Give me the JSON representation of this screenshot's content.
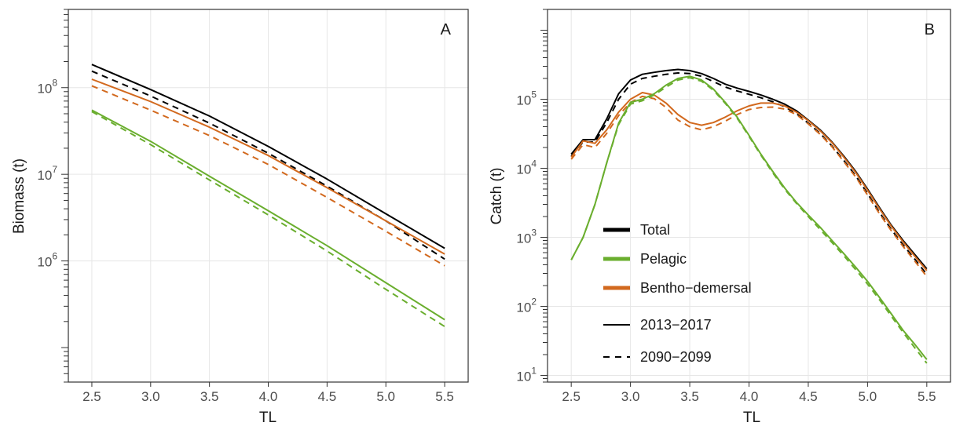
{
  "colors": {
    "total": "#000000",
    "pelagic": "#6aae2e",
    "bentho": "#d2691e",
    "grid": "#e6e6e6",
    "frame": "#333333"
  },
  "legend": {
    "groups": [
      {
        "label": "Total",
        "color": "#000000"
      },
      {
        "label": "Pelagic",
        "color": "#6aae2e"
      },
      {
        "label": "Bentho−demersal",
        "color": "#d2691e"
      }
    ],
    "periods": [
      {
        "label": "2013−2017",
        "dash": "solid"
      },
      {
        "label": "2090−2099",
        "dash": "dashed"
      }
    ]
  },
  "chart_data": [
    {
      "type": "line",
      "panel_label": "A",
      "xlabel": "TL",
      "ylabel": "Biomass (t)",
      "yscale": "log",
      "xlim": [
        2.3,
        5.7
      ],
      "ylim": [
        40000,
        800000000
      ],
      "xticks": [
        "2.5",
        "3.0",
        "3.5",
        "4.0",
        "4.5",
        "5.0",
        "5.5"
      ],
      "ytick_labels": [
        {
          "base": "10",
          "exp": "6",
          "value": 1000000
        },
        {
          "base": "10",
          "exp": "7",
          "value": 10000000
        },
        {
          "base": "10",
          "exp": "8",
          "value": 100000000
        }
      ],
      "grid": true,
      "x": [
        2.5,
        3.0,
        3.5,
        4.0,
        4.5,
        5.0,
        5.5
      ],
      "series": [
        {
          "group": "total",
          "period": "2013−2017",
          "color": "#000000",
          "dash": "solid",
          "values": [
            185000000,
            95000000,
            47000000,
            21000000,
            8800000,
            3500000,
            1400000
          ]
        },
        {
          "group": "total",
          "period": "2090−2099",
          "color": "#000000",
          "dash": "dashed",
          "values": [
            155000000,
            80000000,
            39000000,
            17500000,
            7300000,
            2900000,
            1050000
          ]
        },
        {
          "group": "bentho",
          "period": "2013−2017",
          "color": "#d2691e",
          "dash": "solid",
          "values": [
            125000000,
            69000000,
            35000000,
            16500000,
            7000000,
            2900000,
            1200000
          ]
        },
        {
          "group": "bentho",
          "period": "2090−2099",
          "color": "#d2691e",
          "dash": "dashed",
          "values": [
            105000000,
            55000000,
            28000000,
            13000000,
            5400000,
            2200000,
            880000
          ]
        },
        {
          "group": "pelagic",
          "period": "2013−2017",
          "color": "#6aae2e",
          "dash": "solid",
          "values": [
            55000000,
            24000000,
            9500000,
            3800000,
            1500000,
            560000,
            210000
          ]
        },
        {
          "group": "pelagic",
          "period": "2090−2099",
          "color": "#6aae2e",
          "dash": "dashed",
          "values": [
            53000000,
            22000000,
            8600000,
            3400000,
            1300000,
            470000,
            175000
          ]
        }
      ]
    },
    {
      "type": "line",
      "panel_label": "B",
      "xlabel": "TL",
      "ylabel": "Catch (t)",
      "yscale": "log",
      "xlim": [
        2.3,
        5.7
      ],
      "ylim": [
        8,
        2000000
      ],
      "xticks": [
        "2.5",
        "3.0",
        "3.5",
        "4.0",
        "4.5",
        "5.0",
        "5.5"
      ],
      "ytick_labels": [
        {
          "base": "10",
          "exp": "1",
          "value": 10
        },
        {
          "base": "10",
          "exp": "2",
          "value": 100
        },
        {
          "base": "10",
          "exp": "3",
          "value": 1000
        },
        {
          "base": "10",
          "exp": "4",
          "value": 10000
        },
        {
          "base": "10",
          "exp": "5",
          "value": 100000
        }
      ],
      "grid": true,
      "x": [
        2.5,
        2.6,
        2.7,
        2.8,
        2.9,
        3.0,
        3.1,
        3.2,
        3.3,
        3.4,
        3.5,
        3.6,
        3.7,
        3.8,
        3.9,
        4.0,
        4.1,
        4.2,
        4.3,
        4.4,
        4.5,
        4.6,
        4.7,
        4.8,
        4.9,
        5.0,
        5.1,
        5.2,
        5.3,
        5.4,
        5.5
      ],
      "series": [
        {
          "group": "total",
          "period": "2013−2017",
          "color": "#000000",
          "dash": "solid",
          "values": [
            16000,
            26000,
            26000,
            52000,
            120000,
            190000,
            230000,
            245000,
            260000,
            270000,
            260000,
            235000,
            200000,
            165000,
            145000,
            130000,
            115000,
            100000,
            85000,
            68000,
            50000,
            36000,
            24000,
            15000,
            9000,
            5000,
            2700,
            1500,
            900,
            560,
            350
          ]
        },
        {
          "group": "total",
          "period": "2090−2099",
          "color": "#000000",
          "dash": "dashed",
          "values": [
            15000,
            24000,
            24000,
            46000,
            100000,
            165000,
            200000,
            215000,
            230000,
            240000,
            235000,
            215000,
            180000,
            150000,
            132000,
            118000,
            105000,
            92000,
            78000,
            62000,
            45000,
            32000,
            21000,
            13000,
            7800,
            4300,
            2300,
            1300,
            780,
            480,
            290
          ]
        },
        {
          "group": "bentho",
          "period": "2013−2017",
          "color": "#d2691e",
          "dash": "solid",
          "values": [
            14500,
            25000,
            23000,
            36000,
            65000,
            100000,
            125000,
            115000,
            88000,
            60000,
            46000,
            42000,
            46000,
            55000,
            68000,
            80000,
            88000,
            88000,
            80000,
            65000,
            49000,
            35000,
            23500,
            14500,
            8700,
            4800,
            2600,
            1450,
            860,
            530,
            330
          ]
        },
        {
          "group": "bentho",
          "period": "2090−2099",
          "color": "#d2691e",
          "dash": "dashed",
          "values": [
            13500,
            22000,
            20000,
            32000,
            58000,
            90000,
            110000,
            102000,
            76000,
            50000,
            40000,
            36000,
            40000,
            48000,
            60000,
            71000,
            76000,
            77000,
            72000,
            60000,
            44000,
            31000,
            20500,
            12500,
            7500,
            4100,
            2200,
            1250,
            740,
            450,
            270
          ]
        },
        {
          "group": "pelagic",
          "period": "2013−2017",
          "color": "#6aae2e",
          "dash": "solid",
          "values": [
            470,
            1000,
            3000,
            12000,
            45000,
            90000,
            100000,
            120000,
            160000,
            200000,
            215000,
            190000,
            140000,
            90000,
            55000,
            30000,
            16000,
            9000,
            5200,
            3200,
            2100,
            1400,
            900,
            580,
            370,
            230,
            135,
            78,
            45,
            28,
            17
          ]
        },
        {
          "group": "pelagic",
          "period": "2090−2099",
          "color": "#6aae2e",
          "dash": "dashed",
          "values": [
            470,
            1000,
            3000,
            12000,
            43000,
            85000,
            95000,
            115000,
            150000,
            190000,
            205000,
            182000,
            135000,
            87000,
            53000,
            29000,
            15500,
            8600,
            5000,
            3100,
            2000,
            1300,
            840,
            540,
            340,
            210,
            125,
            72,
            42,
            25,
            15
          ]
        }
      ]
    }
  ]
}
